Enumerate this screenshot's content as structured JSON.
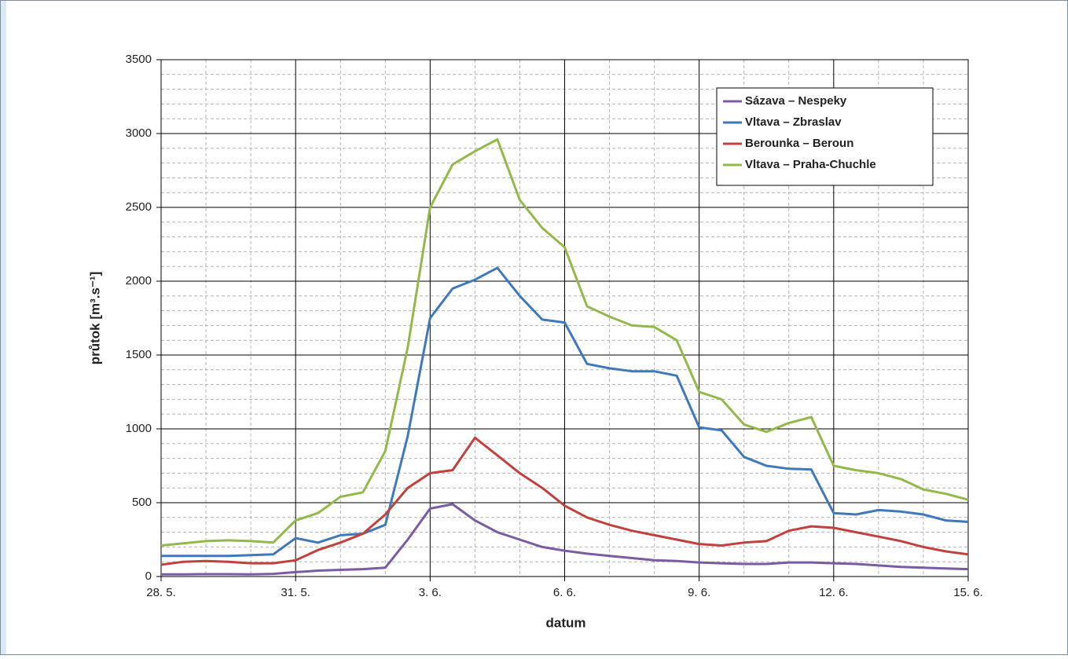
{
  "chart_data": {
    "type": "line",
    "x_label": "datum",
    "y_label": "průtok [m³.s⁻¹]",
    "x": [
      0,
      0.5,
      1,
      1.5,
      2,
      2.5,
      3,
      3.5,
      4,
      4.5,
      5,
      5.5,
      6,
      6.5,
      7,
      7.5,
      8,
      8.5,
      9,
      9.5,
      10,
      10.5,
      11,
      11.5,
      12,
      12.5,
      13,
      13.5,
      14,
      14.5,
      15,
      15.5,
      16,
      16.5,
      17,
      17.5,
      18
    ],
    "series": [
      {
        "name": "Sázava – Nespeky",
        "color": "#7b5ba1",
        "values": [
          15,
          15,
          16,
          16,
          15,
          18,
          30,
          40,
          45,
          50,
          60,
          250,
          460,
          490,
          380,
          300,
          250,
          200,
          175,
          155,
          140,
          125,
          110,
          105,
          95,
          90,
          85,
          85,
          95,
          95,
          90,
          85,
          75,
          65,
          60,
          55,
          50
        ]
      },
      {
        "name": "Vltava – Zbraslav",
        "color": "#3f79b9",
        "values": [
          140,
          140,
          140,
          140,
          145,
          150,
          260,
          230,
          280,
          290,
          350,
          950,
          1750,
          1950,
          2010,
          2090,
          1900,
          1740,
          1720,
          1440,
          1410,
          1390,
          1390,
          1360,
          1010,
          990,
          810,
          750,
          730,
          725,
          430,
          420,
          450,
          440,
          420,
          380,
          370
        ]
      },
      {
        "name": "Berounka – Beroun",
        "color": "#c0413d",
        "values": [
          80,
          100,
          105,
          100,
          90,
          90,
          110,
          180,
          230,
          290,
          420,
          600,
          700,
          720,
          940,
          820,
          700,
          600,
          480,
          400,
          350,
          310,
          280,
          250,
          220,
          210,
          230,
          240,
          310,
          340,
          330,
          300,
          270,
          240,
          200,
          170,
          150
        ]
      },
      {
        "name": "Vltava – Praha-Chuchle",
        "color": "#93b94b",
        "values": [
          210,
          225,
          240,
          245,
          240,
          230,
          380,
          430,
          540,
          570,
          850,
          1550,
          2500,
          2790,
          2880,
          2960,
          2550,
          2360,
          2230,
          1830,
          1760,
          1700,
          1690,
          1600,
          1250,
          1200,
          1030,
          980,
          1040,
          1080,
          750,
          720,
          700,
          660,
          590,
          560,
          520
        ]
      }
    ],
    "xlim": [
      0,
      18
    ],
    "xticks": [
      {
        "value": 0,
        "label": "28. 5."
      },
      {
        "value": 3,
        "label": "31. 5."
      },
      {
        "value": 6,
        "label": "3. 6."
      },
      {
        "value": 9,
        "label": "6. 6."
      },
      {
        "value": 12,
        "label": "9. 6."
      },
      {
        "value": 15,
        "label": "12. 6."
      },
      {
        "value": 18,
        "label": "15. 6."
      }
    ],
    "ylim": [
      0,
      3500
    ],
    "yticks": [
      0,
      500,
      1000,
      1500,
      2000,
      2500,
      3000,
      3500
    ],
    "grid": true,
    "minor_grid": true,
    "legend": "upper right"
  }
}
